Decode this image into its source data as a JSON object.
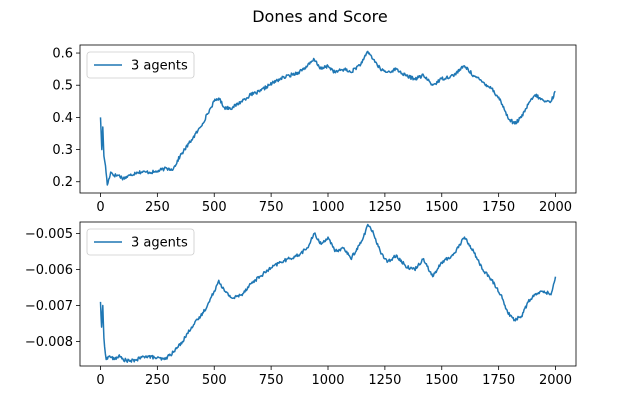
{
  "title": "Dones and Score",
  "chart_data": [
    {
      "type": "line",
      "xlim": [
        -90,
        2090
      ],
      "ylim": [
        0.165,
        0.625
      ],
      "xticks": [
        0,
        250,
        500,
        750,
        1000,
        1250,
        1500,
        1750,
        2000
      ],
      "xtick_labels": [
        "0",
        "250",
        "500",
        "750",
        "1000",
        "1250",
        "1500",
        "1750",
        "2000"
      ],
      "yticks": [
        0.2,
        0.3,
        0.4,
        0.5,
        0.6
      ],
      "ytick_labels": [
        "0.2",
        "0.3",
        "0.4",
        "0.5",
        "0.6"
      ],
      "legend": "upper left",
      "series": [
        {
          "name": "3 agents",
          "color": "#1f77b4",
          "anchors": [
            [
              0,
              0.4
            ],
            [
              6,
              0.3
            ],
            [
              10,
              0.37
            ],
            [
              15,
              0.28
            ],
            [
              22,
              0.25
            ],
            [
              30,
              0.19
            ],
            [
              45,
              0.23
            ],
            [
              60,
              0.22
            ],
            [
              80,
              0.22
            ],
            [
              100,
              0.21
            ],
            [
              130,
              0.22
            ],
            [
              160,
              0.23
            ],
            [
              200,
              0.23
            ],
            [
              240,
              0.23
            ],
            [
              280,
              0.24
            ],
            [
              320,
              0.24
            ],
            [
              350,
              0.28
            ],
            [
              400,
              0.33
            ],
            [
              440,
              0.37
            ],
            [
              470,
              0.41
            ],
            [
              500,
              0.45
            ],
            [
              520,
              0.46
            ],
            [
              545,
              0.43
            ],
            [
              580,
              0.43
            ],
            [
              620,
              0.45
            ],
            [
              660,
              0.47
            ],
            [
              700,
              0.48
            ],
            [
              740,
              0.5
            ],
            [
              790,
              0.52
            ],
            [
              830,
              0.53
            ],
            [
              870,
              0.54
            ],
            [
              910,
              0.56
            ],
            [
              940,
              0.58
            ],
            [
              970,
              0.55
            ],
            [
              1000,
              0.56
            ],
            [
              1030,
              0.54
            ],
            [
              1070,
              0.55
            ],
            [
              1100,
              0.54
            ],
            [
              1150,
              0.57
            ],
            [
              1175,
              0.605
            ],
            [
              1200,
              0.58
            ],
            [
              1230,
              0.55
            ],
            [
              1260,
              0.54
            ],
            [
              1300,
              0.55
            ],
            [
              1340,
              0.53
            ],
            [
              1380,
              0.52
            ],
            [
              1420,
              0.53
            ],
            [
              1460,
              0.5
            ],
            [
              1500,
              0.52
            ],
            [
              1550,
              0.53
            ],
            [
              1600,
              0.56
            ],
            [
              1640,
              0.53
            ],
            [
              1680,
              0.51
            ],
            [
              1720,
              0.49
            ],
            [
              1760,
              0.45
            ],
            [
              1790,
              0.4
            ],
            [
              1820,
              0.38
            ],
            [
              1850,
              0.4
            ],
            [
              1880,
              0.44
            ],
            [
              1910,
              0.47
            ],
            [
              1950,
              0.45
            ],
            [
              1980,
              0.45
            ],
            [
              2000,
              0.48
            ]
          ]
        }
      ]
    },
    {
      "type": "line",
      "xlim": [
        -90,
        2090
      ],
      "ylim": [
        -0.00868,
        -0.00468
      ],
      "xticks": [
        0,
        250,
        500,
        750,
        1000,
        1250,
        1500,
        1750,
        2000
      ],
      "xtick_labels": [
        "0",
        "250",
        "500",
        "750",
        "1000",
        "1250",
        "1500",
        "1750",
        "2000"
      ],
      "yticks": [
        -0.008,
        -0.007,
        -0.006,
        -0.005
      ],
      "ytick_labels": [
        "−0.008",
        "−0.007",
        "−0.006",
        "−0.005"
      ],
      "legend": "upper left",
      "series": [
        {
          "name": "3 agents",
          "color": "#1f77b4",
          "anchors": [
            [
              0,
              -0.0069
            ],
            [
              5,
              -0.0076
            ],
            [
              10,
              -0.007
            ],
            [
              15,
              -0.0079
            ],
            [
              25,
              -0.0085
            ],
            [
              40,
              -0.0084
            ],
            [
              60,
              -0.0085
            ],
            [
              80,
              -0.0084
            ],
            [
              100,
              -0.0085
            ],
            [
              130,
              -0.00855
            ],
            [
              160,
              -0.0085
            ],
            [
              200,
              -0.0084
            ],
            [
              240,
              -0.00845
            ],
            [
              280,
              -0.0085
            ],
            [
              320,
              -0.0083
            ],
            [
              360,
              -0.008
            ],
            [
              400,
              -0.0076
            ],
            [
              440,
              -0.0073
            ],
            [
              470,
              -0.007
            ],
            [
              500,
              -0.0066
            ],
            [
              520,
              -0.0063
            ],
            [
              545,
              -0.0066
            ],
            [
              580,
              -0.0068
            ],
            [
              620,
              -0.0067
            ],
            [
              660,
              -0.0064
            ],
            [
              700,
              -0.0062
            ],
            [
              740,
              -0.006
            ],
            [
              790,
              -0.0058
            ],
            [
              830,
              -0.0057
            ],
            [
              870,
              -0.0056
            ],
            [
              910,
              -0.0054
            ],
            [
              940,
              -0.005
            ],
            [
              970,
              -0.0053
            ],
            [
              1000,
              -0.0051
            ],
            [
              1030,
              -0.0055
            ],
            [
              1070,
              -0.0054
            ],
            [
              1100,
              -0.0057
            ],
            [
              1150,
              -0.0052
            ],
            [
              1175,
              -0.00475
            ],
            [
              1200,
              -0.005
            ],
            [
              1230,
              -0.0055
            ],
            [
              1260,
              -0.0058
            ],
            [
              1300,
              -0.0056
            ],
            [
              1340,
              -0.0059
            ],
            [
              1380,
              -0.006
            ],
            [
              1420,
              -0.0057
            ],
            [
              1460,
              -0.0062
            ],
            [
              1500,
              -0.0058
            ],
            [
              1550,
              -0.0056
            ],
            [
              1600,
              -0.0051
            ],
            [
              1640,
              -0.0055
            ],
            [
              1680,
              -0.006
            ],
            [
              1720,
              -0.0063
            ],
            [
              1760,
              -0.0067
            ],
            [
              1790,
              -0.0072
            ],
            [
              1820,
              -0.0074
            ],
            [
              1850,
              -0.0073
            ],
            [
              1880,
              -0.0069
            ],
            [
              1910,
              -0.0067
            ],
            [
              1950,
              -0.0066
            ],
            [
              1980,
              -0.0067
            ],
            [
              2000,
              -0.0062
            ]
          ]
        }
      ]
    }
  ]
}
